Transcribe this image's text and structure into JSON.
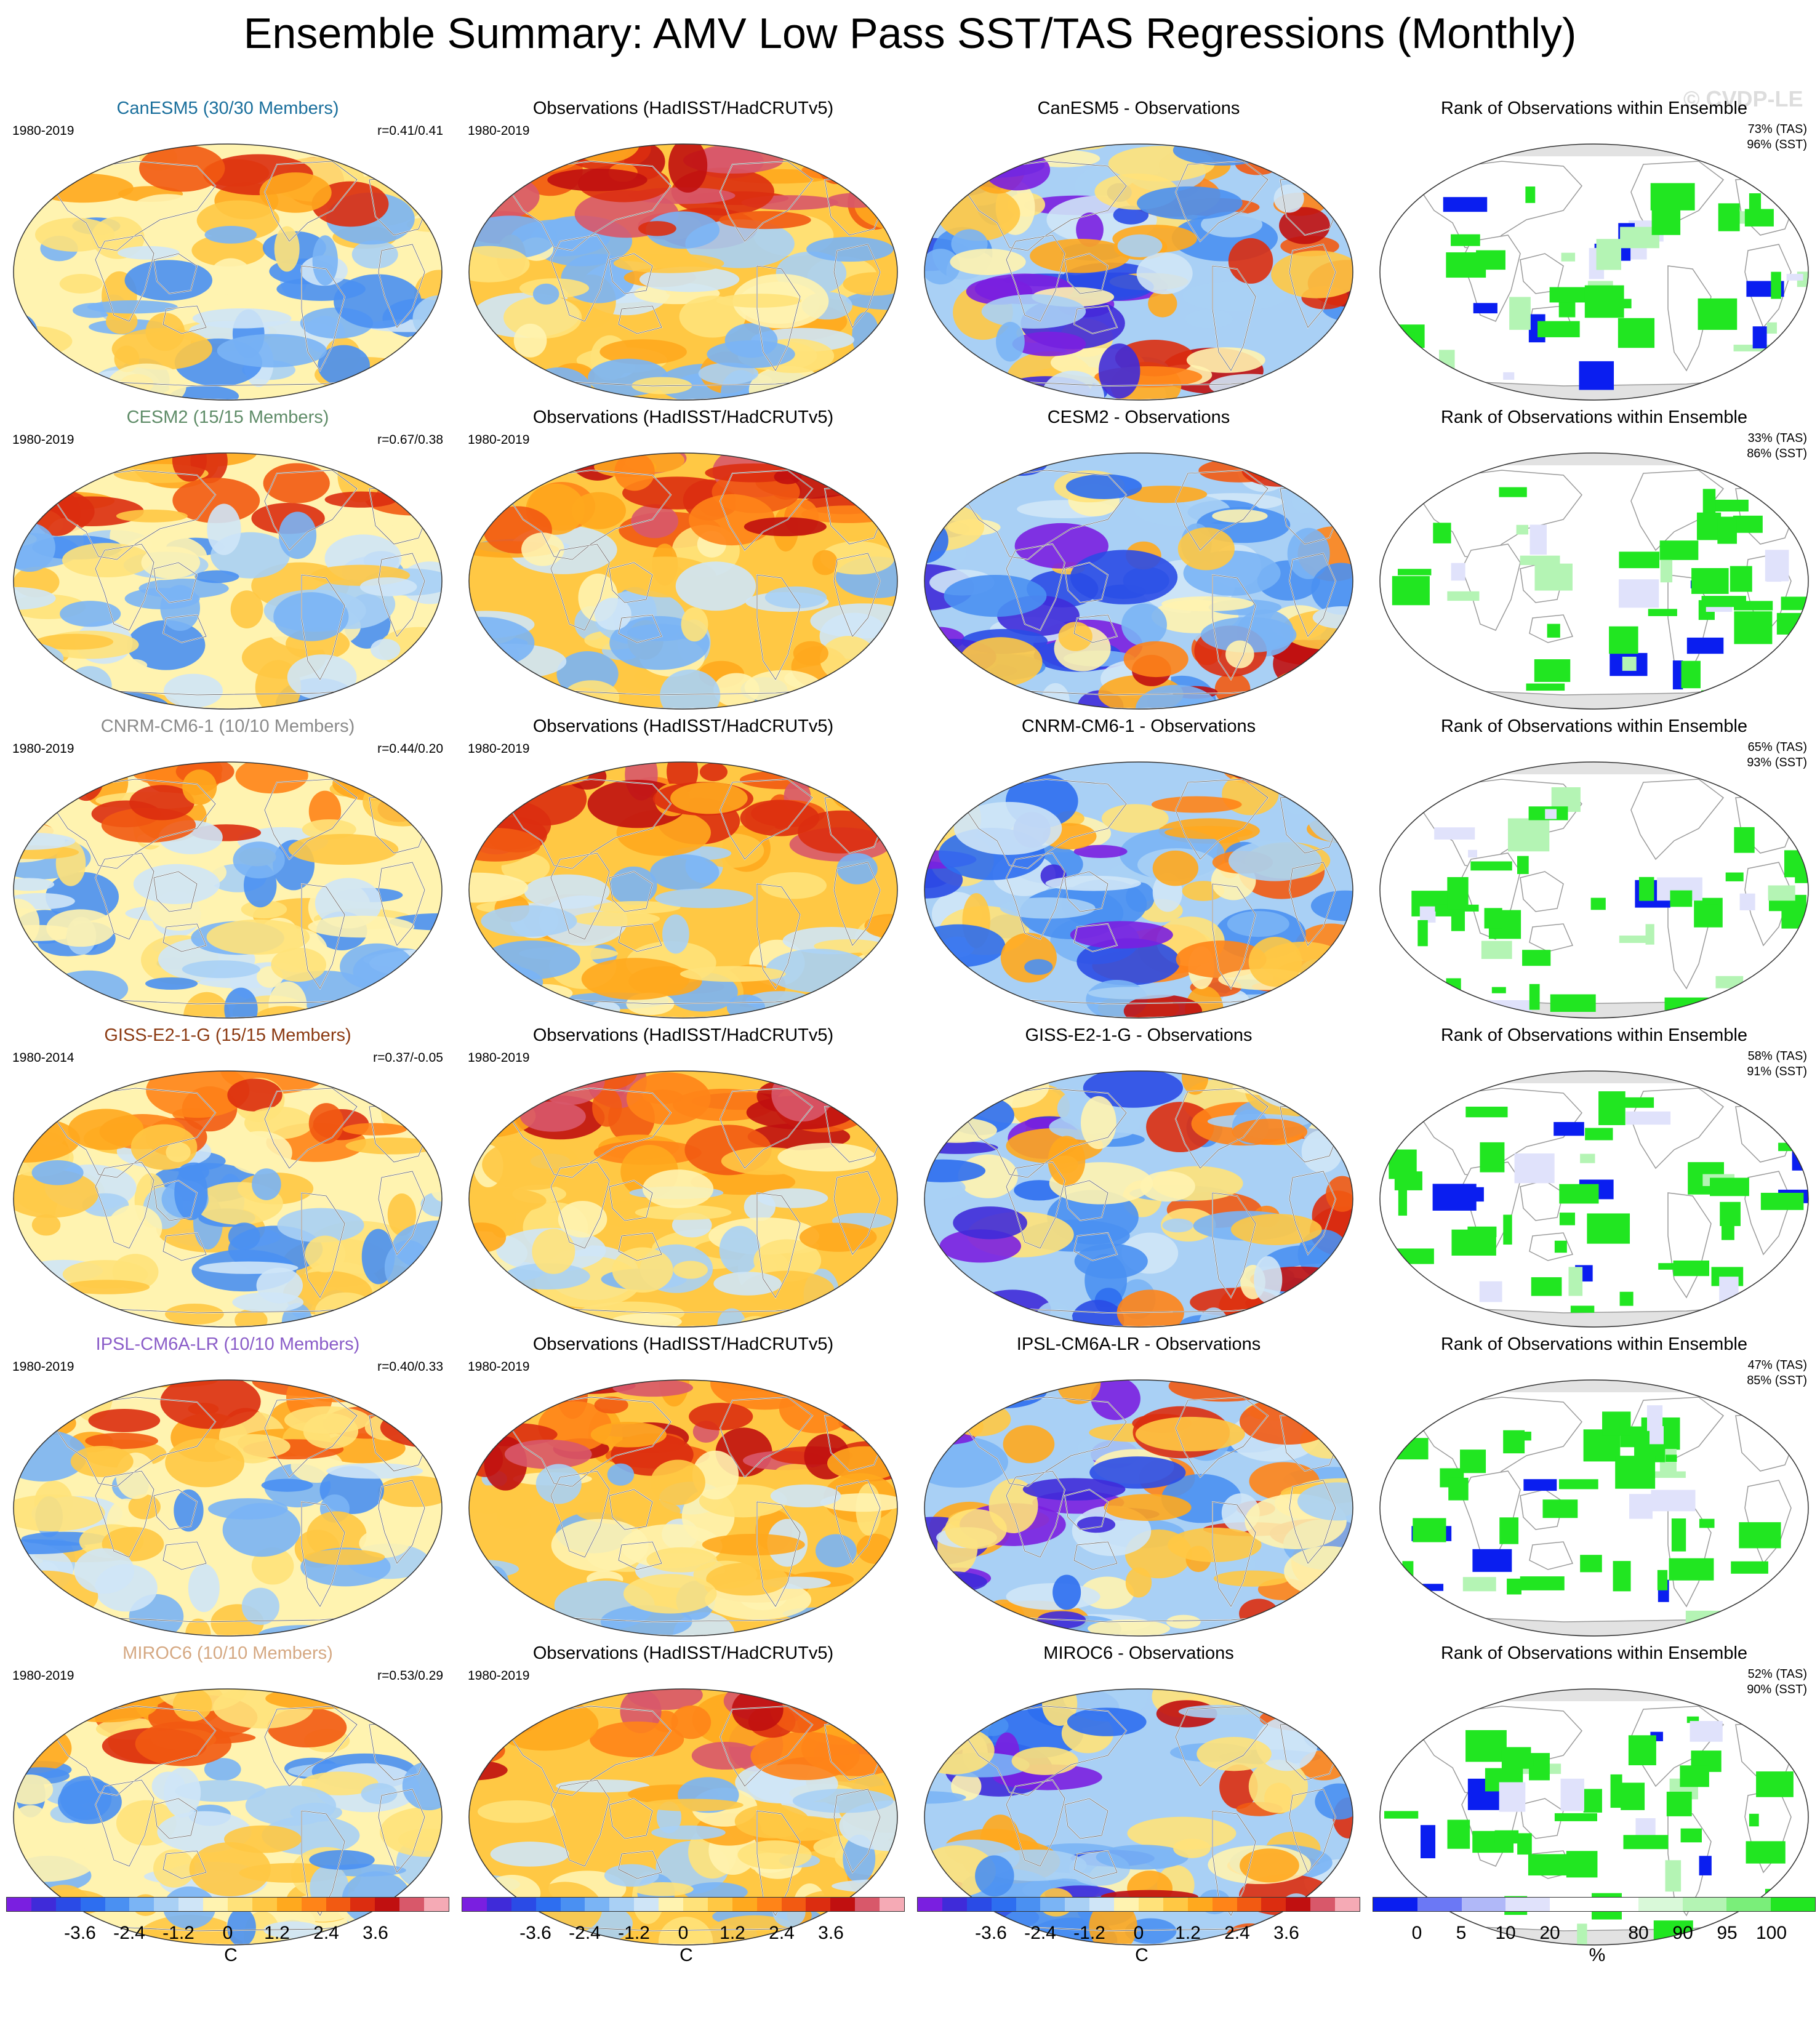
{
  "title": "Ensemble Summary: AMV Low Pass SST/TAS Regressions (Monthly)",
  "watermark": "© CVDP-LE",
  "observations_title": "Observations (HadISST/HadCRUTv5)",
  "rank_title": "Rank of Observations within Ensemble",
  "rows": [
    {
      "model": "CanESM5",
      "model_title": "CanESM5 (30/30 Members)",
      "title_color": "#1a6f9c",
      "model_period": "1980-2019",
      "pattern_corr": "r=0.41/0.41",
      "obs_period": "1980-2019",
      "diff_title": "CanESM5 - Observations",
      "rank_tas": "73% (TAS)",
      "rank_sst": "96% (SST)"
    },
    {
      "model": "CESM2",
      "model_title": "CESM2 (15/15 Members)",
      "title_color": "#5f8c68",
      "model_period": "1980-2019",
      "pattern_corr": "r=0.67/0.38",
      "obs_period": "1980-2019",
      "diff_title": "CESM2 - Observations",
      "rank_tas": "33% (TAS)",
      "rank_sst": "86% (SST)"
    },
    {
      "model": "CNRM-CM6-1",
      "model_title": "CNRM-CM6-1 (10/10 Members)",
      "title_color": "#8a8a8a",
      "model_period": "1980-2019",
      "pattern_corr": "r=0.44/0.20",
      "obs_period": "1980-2019",
      "diff_title": "CNRM-CM6-1 - Observations",
      "rank_tas": "65% (TAS)",
      "rank_sst": "93% (SST)"
    },
    {
      "model": "GISS-E2-1-G",
      "model_title": "GISS-E2-1-G (15/15 Members)",
      "title_color": "#8b3a12",
      "model_period": "1980-2014",
      "pattern_corr": "r=0.37/-0.05",
      "obs_period": "1980-2019",
      "diff_title": "GISS-E2-1-G - Observations",
      "rank_tas": "58% (TAS)",
      "rank_sst": "91% (SST)"
    },
    {
      "model": "IPSL-CM6A-LR",
      "model_title": "IPSL-CM6A-LR (10/10 Members)",
      "title_color": "#8a5cc8",
      "model_period": "1980-2019",
      "pattern_corr": "r=0.40/0.33",
      "obs_period": "1980-2019",
      "diff_title": "IPSL-CM6A-LR - Observations",
      "rank_tas": "47% (TAS)",
      "rank_sst": "85% (SST)"
    },
    {
      "model": "MIROC6",
      "model_title": "MIROC6 (10/10 Members)",
      "title_color": "#d5a882",
      "model_period": "1980-2019",
      "pattern_corr": "r=0.53/0.29",
      "obs_period": "1980-2019",
      "diff_title": "MIROC6 - Observations",
      "rank_tas": "52% (TAS)",
      "rank_sst": "90% (SST)"
    }
  ],
  "colorbars": {
    "diverging_colors": [
      "#7a1fe0",
      "#3f2bd9",
      "#2a4be6",
      "#2d6ef0",
      "#4a90f2",
      "#7ab4f5",
      "#a9d0f5",
      "#cfe5f7",
      "#fff3b0",
      "#ffe27a",
      "#ffc844",
      "#ffa91e",
      "#ff8418",
      "#f25a12",
      "#dc2d10",
      "#c01010",
      "#d8586a",
      "#f5aab5"
    ],
    "diverging_ticks": [
      "-3.6",
      "-2.4",
      "-1.2",
      "0",
      "1.2",
      "2.4",
      "3.6"
    ],
    "diverging_unit": "C",
    "rank_colors": [
      "#0a1ef0",
      "#6b78f5",
      "#b0b8f8",
      "#e0e2fb",
      "#ffffff",
      "#ffffff",
      "#d9f9d9",
      "#b4f4b4",
      "#7aee7a",
      "#21e621"
    ],
    "rank_ticks": [
      "0",
      "5",
      "10",
      "20",
      "80",
      "90",
      "95",
      "100"
    ],
    "rank_unit": "%"
  }
}
